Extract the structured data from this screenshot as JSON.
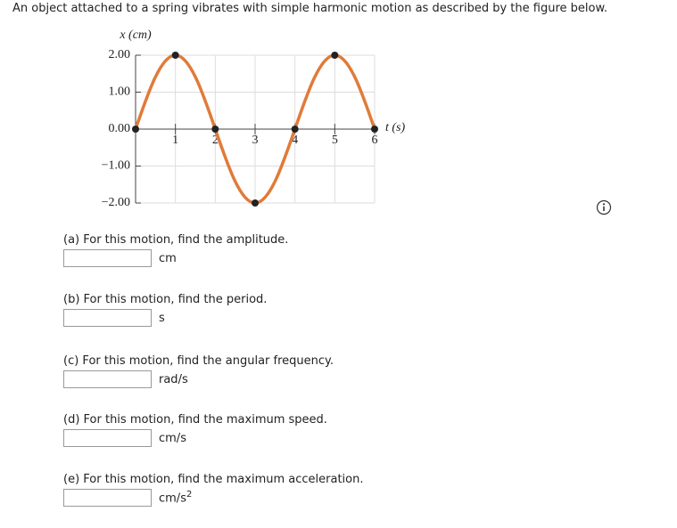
{
  "prompt": "An object attached to a spring vibrates with simple harmonic motion as described by the figure below.",
  "chart_data": {
    "type": "line",
    "x_label": "t (s)",
    "y_label": "x (cm)",
    "x": [
      0,
      1,
      2,
      3,
      4,
      5,
      6
    ],
    "values": [
      0,
      2,
      0,
      -2,
      0,
      2,
      0
    ],
    "color": "#e07b39",
    "marker_color": "#222222",
    "xlim": [
      0,
      6
    ],
    "ylim": [
      -2,
      2
    ],
    "xticks": [
      1,
      2,
      3,
      4,
      5,
      6
    ],
    "yticks": [
      {
        "value": -2,
        "label": "−2.00"
      },
      {
        "value": -1,
        "label": "−1.00"
      },
      {
        "value": 0,
        "label": "0.00"
      },
      {
        "value": 1,
        "label": "1.00"
      },
      {
        "value": 2,
        "label": "2.00"
      }
    ],
    "grid": true
  },
  "questions": [
    {
      "label": "(a) For this motion, find the amplitude.",
      "unit": {
        "base": "cm"
      }
    },
    {
      "label": "(b) For this motion, find the period.",
      "unit": {
        "base": "s"
      }
    },
    {
      "label": "(c) For this motion, find the angular frequency.",
      "unit": {
        "base": "rad/s"
      }
    },
    {
      "label": "(d) For this motion, find the maximum speed.",
      "unit": {
        "base": "cm/s"
      }
    },
    {
      "label": "(e) For this motion, find the maximum acceleration.",
      "unit": {
        "base": "cm/s",
        "superscript": "2"
      }
    }
  ]
}
